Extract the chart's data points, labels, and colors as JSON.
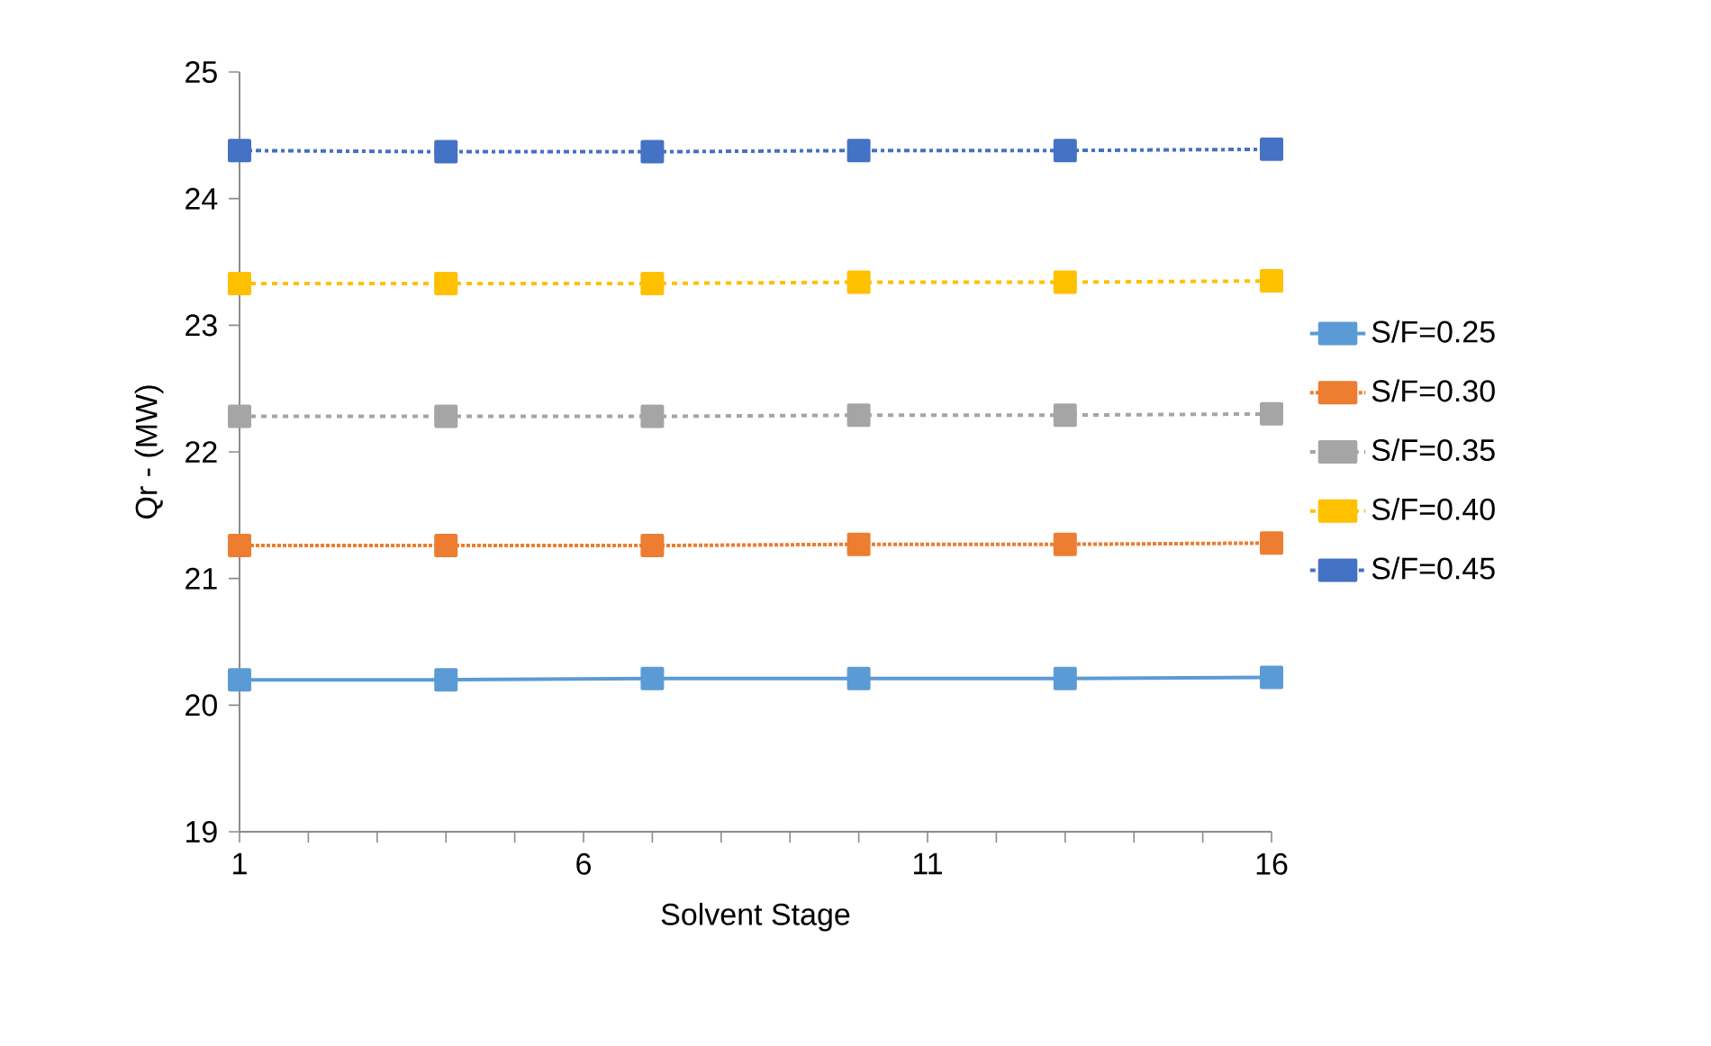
{
  "chart_data": {
    "type": "line",
    "xlabel": "Solvent Stage",
    "ylabel": "Qr - (MW)",
    "x": [
      1,
      4,
      7,
      10,
      13,
      16
    ],
    "series": [
      {
        "name": "S/F=0.25",
        "color": "#5b9bd5",
        "line_style": "solid",
        "values": [
          20.2,
          20.2,
          20.21,
          20.21,
          20.21,
          20.22
        ]
      },
      {
        "name": "S/F=0.30",
        "color": "#ed7d31",
        "line_style": "dotted",
        "values": [
          21.26,
          21.26,
          21.26,
          21.27,
          21.27,
          21.28
        ]
      },
      {
        "name": "S/F=0.35",
        "color": "#a5a5a5",
        "line_style": "dashed",
        "values": [
          22.28,
          22.28,
          22.28,
          22.29,
          22.29,
          22.3
        ]
      },
      {
        "name": "S/F=0.40",
        "color": "#ffc000",
        "line_style": "dashed",
        "values": [
          23.33,
          23.33,
          23.33,
          23.34,
          23.34,
          23.35
        ]
      },
      {
        "name": "S/F=0.45",
        "color": "#4472c4",
        "line_style": "dashdot",
        "values": [
          24.38,
          24.37,
          24.37,
          24.38,
          24.38,
          24.39
        ]
      }
    ],
    "xlim": [
      1,
      16
    ],
    "xticks": [
      1,
      {
        "value": 2,
        "label": null
      },
      {
        "value": 3,
        "label": null
      },
      {
        "value": 4,
        "label": null
      },
      {
        "value": 5,
        "label": null
      },
      6,
      {
        "value": 7,
        "label": null
      },
      {
        "value": 8,
        "label": null
      },
      {
        "value": 9,
        "label": null
      },
      {
        "value": 10,
        "label": null
      },
      11,
      {
        "value": 12,
        "label": null
      },
      {
        "value": 13,
        "label": null
      },
      {
        "value": 14,
        "label": null
      },
      {
        "value": 15,
        "label": null
      },
      16
    ],
    "ylim": [
      19,
      25
    ],
    "yticks": [
      19,
      20,
      21,
      22,
      23,
      24,
      25
    ],
    "marker": "square",
    "legend": "right",
    "grid": false
  }
}
